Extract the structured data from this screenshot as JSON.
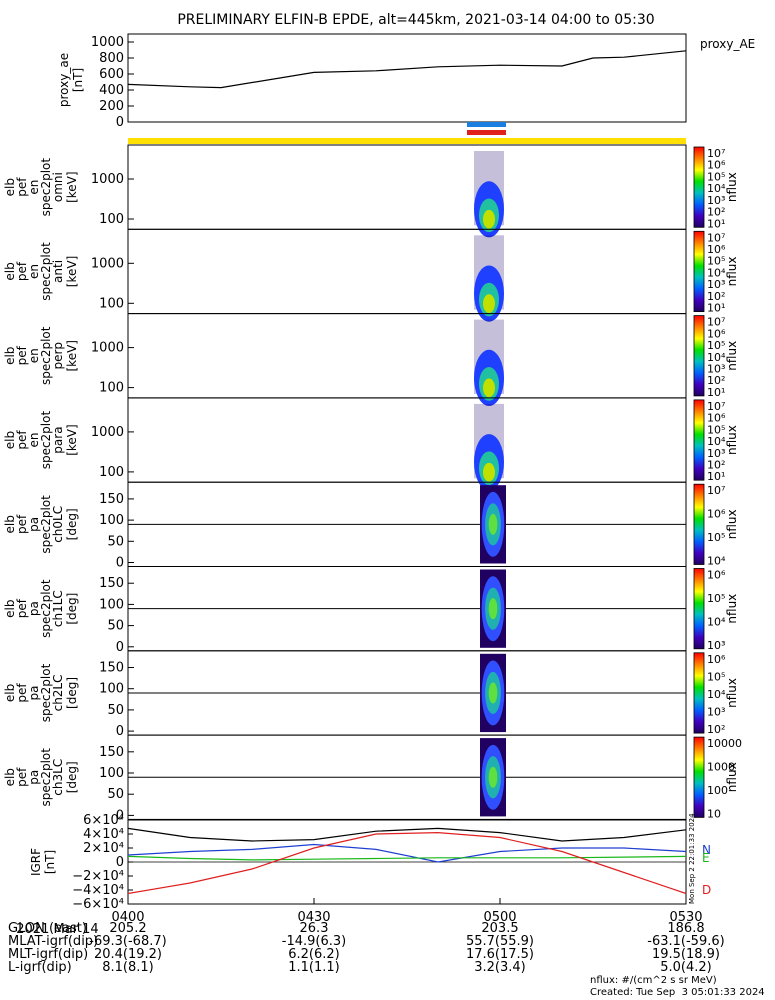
{
  "title": "PRELIMINARY ELFIN-B EPDE, alt=445km, 2021-03-14 04:00 to 05:30",
  "proxy_ae": {
    "label": "proxy_AE",
    "ylabel_lines": [
      "proxy_ae",
      "[nT]"
    ],
    "yticks": [
      "1000",
      "800",
      "600",
      "400",
      "200",
      "0"
    ],
    "ytick_values": [
      1000,
      800,
      600,
      400,
      200,
      0
    ],
    "ylim": [
      0,
      1100
    ]
  },
  "colors": {
    "status_top": "#1a7fe0",
    "status_bottom": "#e0201a",
    "status_bar": "#ffe000",
    "bn": "#1f3fd0",
    "be": "#18b818",
    "bd": "#e02020",
    "bt": "#000000"
  },
  "panels": [
    {
      "id": "omni",
      "ylabel": [
        "elb",
        "pef",
        "en",
        "spec2plot",
        "omni",
        "[keV]"
      ],
      "yticks": [
        "1000",
        "100"
      ],
      "cb_ticks": [
        "10⁷",
        "10⁶",
        "10⁵",
        "10⁴",
        "10³",
        "10²",
        "10¹"
      ],
      "cb_label": "nflux"
    },
    {
      "id": "anti",
      "ylabel": [
        "elb",
        "pef",
        "en",
        "spec2plot",
        "anti",
        "[keV]"
      ],
      "yticks": [
        "1000",
        "100"
      ],
      "cb_ticks": [
        "10⁷",
        "10⁶",
        "10⁵",
        "10⁴",
        "10³",
        "10²",
        "10¹"
      ],
      "cb_label": "nflux"
    },
    {
      "id": "perp",
      "ylabel": [
        "elb",
        "pef",
        "en",
        "spec2plot",
        "perp",
        "[keV]"
      ],
      "yticks": [
        "1000",
        "100"
      ],
      "cb_ticks": [
        "10⁷",
        "10⁶",
        "10⁵",
        "10⁴",
        "10³",
        "10²",
        "10¹"
      ],
      "cb_label": "nflux"
    },
    {
      "id": "para",
      "ylabel": [
        "elb",
        "pef",
        "en",
        "spec2plot",
        "para",
        "[keV]"
      ],
      "yticks": [
        "1000",
        "100"
      ],
      "cb_ticks": [
        "10⁷",
        "10⁶",
        "10⁵",
        "10⁴",
        "10³",
        "10²",
        "10¹"
      ],
      "cb_label": "nflux"
    },
    {
      "id": "ch0LC",
      "ylabel": [
        "elb",
        "pef",
        "pa",
        "spec2plot",
        "ch0LC",
        "[deg]"
      ],
      "yticks": [
        "150",
        "100",
        "50",
        "0"
      ],
      "cb_ticks": [
        "10⁷",
        "10⁶",
        "10⁵",
        "10⁴"
      ],
      "cb_label": "nflux"
    },
    {
      "id": "ch1LC",
      "ylabel": [
        "elb",
        "pef",
        "pa",
        "spec2plot",
        "ch1LC",
        "[deg]"
      ],
      "yticks": [
        "150",
        "100",
        "50",
        "0"
      ],
      "cb_ticks": [
        "10⁶",
        "10⁵",
        "10⁴",
        "10³"
      ],
      "cb_label": "nflux"
    },
    {
      "id": "ch2LC",
      "ylabel": [
        "elb",
        "pef",
        "pa",
        "spec2plot",
        "ch2LC",
        "[deg]"
      ],
      "yticks": [
        "150",
        "100",
        "50",
        "0"
      ],
      "cb_ticks": [
        "10⁶",
        "10⁵",
        "10⁴",
        "10³",
        "10²"
      ],
      "cb_label": "nflux"
    },
    {
      "id": "ch3LC",
      "ylabel": [
        "elb",
        "pef",
        "pa",
        "spec2plot",
        "ch3LC",
        "[deg]"
      ],
      "yticks": [
        "150",
        "100",
        "50",
        "0"
      ],
      "cb_ticks": [
        "10000",
        "1000",
        "100",
        "10"
      ],
      "cb_label": "nflux"
    }
  ],
  "igrf": {
    "ylabel_lines": [
      "IGRF",
      "[nT]"
    ],
    "yticks": [
      "6×10⁴",
      "4×10⁴",
      "2×10⁴",
      "0",
      "−2×10⁴",
      "−4×10⁴",
      "−6×10⁴"
    ],
    "ytick_values": [
      60000,
      40000,
      20000,
      0,
      -20000,
      -40000,
      -60000
    ],
    "labels": [
      "N",
      "E",
      "D"
    ],
    "side_text": "Mon Sep  2 22:01:33 2024"
  },
  "chart_data": [
    {
      "type": "line",
      "label": "proxy_AE",
      "x": [
        "0400",
        "0410",
        "0415",
        "0430",
        "0440",
        "0450",
        "0500",
        "0510",
        "0515",
        "0520",
        "0530"
      ],
      "values": [
        470,
        440,
        430,
        620,
        640,
        690,
        710,
        700,
        800,
        810,
        890
      ],
      "ylim": [
        0,
        1100
      ]
    },
    {
      "type": "line",
      "label": "IGRF",
      "x": [
        "0400",
        "0410",
        "0420",
        "0430",
        "0440",
        "0450",
        "0500",
        "0510",
        "0520",
        "0530"
      ],
      "series": [
        {
          "name": "N",
          "values": [
            10000,
            15000,
            18000,
            25000,
            18000,
            0,
            15000,
            20000,
            20000,
            15000
          ]
        },
        {
          "name": "E",
          "values": [
            8000,
            5000,
            3000,
            4000,
            5000,
            6000,
            6000,
            6000,
            7000,
            8000
          ]
        },
        {
          "name": "D",
          "values": [
            -45000,
            -30000,
            -10000,
            20000,
            40000,
            42000,
            35000,
            15000,
            -15000,
            -45000
          ]
        },
        {
          "name": "",
          "values": [
            48000,
            35000,
            30000,
            32000,
            44000,
            48000,
            42000,
            30000,
            35000,
            46000
          ]
        }
      ],
      "ylim": [
        -60000,
        60000
      ]
    }
  ],
  "time_axis": {
    "ticks": [
      "0400",
      "0430",
      "0500",
      "0530"
    ],
    "date": "2021 Mar 14",
    "rows": [
      {
        "name": "GLON (east)",
        "values": [
          "205.2",
          "26.3",
          "203.5",
          "186.8"
        ]
      },
      {
        "name": "MLAT-igrf(dip)",
        "values": [
          "-69.3(-68.7)",
          "-14.9(6.3)",
          "55.7(55.9)",
          "-63.1(-59.6)"
        ]
      },
      {
        "name": "MLT-igrf(dip)",
        "values": [
          "20.4(19.2)",
          "6.2(6.2)",
          "17.6(17.5)",
          "19.5(18.9)"
        ]
      },
      {
        "name": "L-igrf(dip)",
        "values": [
          "8.1(8.1)",
          "1.1(1.1)",
          "3.2(3.4)",
          "5.0(4.2)"
        ]
      }
    ]
  },
  "footer": {
    "units": "nflux: #/(cm^2 s sr MeV)",
    "created": "Created: Tue Sep  3 05:01:33 2024"
  }
}
